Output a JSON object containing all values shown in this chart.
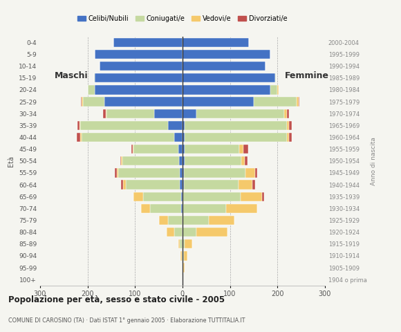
{
  "age_groups": [
    "100+",
    "95-99",
    "90-94",
    "85-89",
    "80-84",
    "75-79",
    "70-74",
    "65-69",
    "60-64",
    "55-59",
    "50-54",
    "45-49",
    "40-44",
    "35-39",
    "30-34",
    "25-29",
    "20-24",
    "15-19",
    "10-14",
    "5-9",
    "0-4"
  ],
  "birth_years": [
    "1904 o prima",
    "1905-1909",
    "1910-1914",
    "1915-1919",
    "1920-1924",
    "1925-1929",
    "1930-1934",
    "1935-1939",
    "1940-1944",
    "1945-1949",
    "1950-1954",
    "1955-1959",
    "1960-1964",
    "1965-1969",
    "1970-1974",
    "1975-1979",
    "1980-1984",
    "1985-1989",
    "1990-1994",
    "1995-1999",
    "2000-2004"
  ],
  "male": {
    "celibe": [
      0,
      0,
      0,
      0,
      0,
      0,
      3,
      3,
      5,
      5,
      7,
      8,
      18,
      30,
      60,
      165,
      185,
      185,
      175,
      185,
      145
    ],
    "coniugato": [
      0,
      0,
      2,
      5,
      18,
      30,
      65,
      80,
      115,
      130,
      120,
      95,
      195,
      185,
      100,
      45,
      15,
      2,
      0,
      0,
      0
    ],
    "vedovo": [
      0,
      0,
      2,
      3,
      15,
      20,
      20,
      20,
      5,
      3,
      2,
      2,
      2,
      2,
      2,
      2,
      0,
      0,
      0,
      0,
      0
    ],
    "divorziato": [
      0,
      0,
      0,
      0,
      0,
      0,
      0,
      0,
      5,
      5,
      2,
      2,
      8,
      5,
      5,
      2,
      0,
      0,
      0,
      0,
      0
    ]
  },
  "female": {
    "nubile": [
      0,
      0,
      0,
      0,
      0,
      0,
      2,
      2,
      3,
      3,
      4,
      5,
      5,
      5,
      30,
      150,
      185,
      195,
      175,
      185,
      140
    ],
    "coniugata": [
      0,
      2,
      3,
      5,
      30,
      55,
      90,
      120,
      115,
      130,
      120,
      115,
      215,
      215,
      185,
      90,
      15,
      2,
      0,
      0,
      0
    ],
    "vedova": [
      0,
      3,
      8,
      15,
      65,
      55,
      65,
      45,
      30,
      20,
      8,
      8,
      5,
      5,
      5,
      5,
      2,
      0,
      0,
      0,
      0
    ],
    "divorziata": [
      0,
      0,
      0,
      0,
      0,
      0,
      0,
      5,
      5,
      5,
      5,
      10,
      5,
      5,
      5,
      2,
      0,
      0,
      0,
      0,
      0
    ]
  },
  "colors": {
    "celibe": "#4472C4",
    "coniugato": "#C5D9A0",
    "vedovo": "#F5C96B",
    "divorziato": "#C0504D"
  },
  "title": "Popolazione per età, sesso e stato civile - 2005",
  "subtitle": "COMUNE DI CAROSINO (TA) · Dati ISTAT 1° gennaio 2005 · Elaborazione TUTTITALIA.IT",
  "xlim": 300,
  "legend_labels": [
    "Celibi/Nubili",
    "Coniugati/e",
    "Vedovi/e",
    "Divorziati/e"
  ],
  "bg_color": "#f5f5f0"
}
